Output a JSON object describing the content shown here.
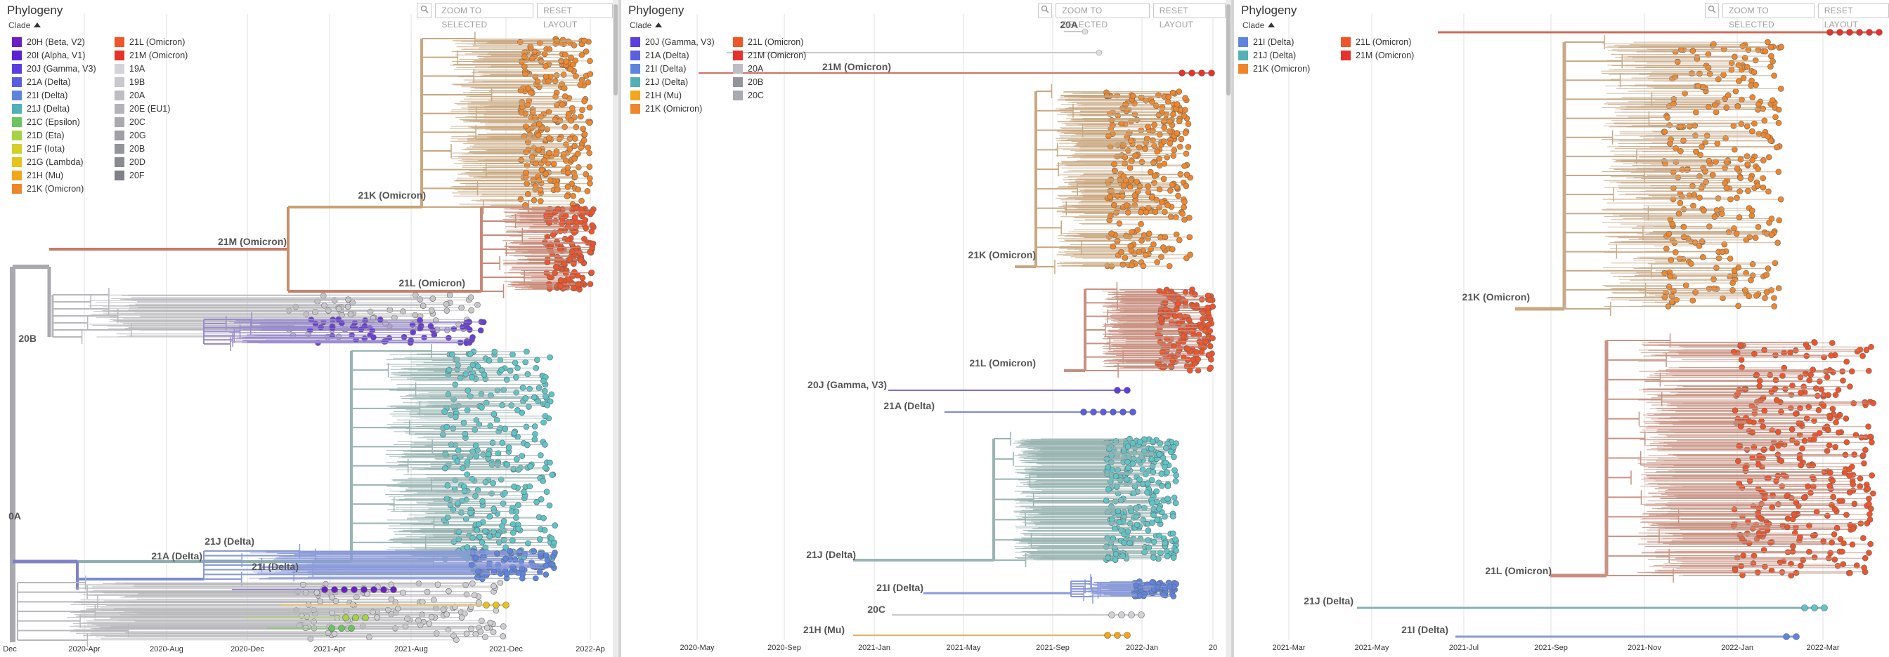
{
  "panels": [
    {
      "title": "Phylogeny",
      "clade_label": "Clade",
      "buttons": {
        "zoom": "ZOOM TO SELECTED",
        "reset": "RESET LAYOUT"
      },
      "legend": [
        [
          {
            "label": "20H (Beta, V2)",
            "color": "#6a1ec4"
          },
          {
            "label": "20I (Alpha, V1)",
            "color": "#5b22d6"
          },
          {
            "label": "20J (Gamma, V3)",
            "color": "#5a3ee0"
          },
          {
            "label": "21A (Delta)",
            "color": "#5a5ee0"
          },
          {
            "label": "21I (Delta)",
            "color": "#5e84e0"
          },
          {
            "label": "21J (Delta)",
            "color": "#52b0b8"
          },
          {
            "label": "21C (Epsilon)",
            "color": "#6cc45e"
          },
          {
            "label": "21D (Eta)",
            "color": "#a6d344"
          },
          {
            "label": "21F (Iota)",
            "color": "#d5cf29"
          },
          {
            "label": "21G (Lambda)",
            "color": "#e6c21c"
          },
          {
            "label": "21H (Mu)",
            "color": "#f2a61a"
          },
          {
            "label": "21K (Omicron)",
            "color": "#f0862a"
          }
        ],
        [
          {
            "label": "21L (Omicron)",
            "color": "#f0542a"
          },
          {
            "label": "21M (Omicron)",
            "color": "#e6322b"
          },
          {
            "label": "19A",
            "color": "#d3d3d8"
          },
          {
            "label": "19B",
            "color": "#c8c8cd"
          },
          {
            "label": "20A",
            "color": "#bdbdc3"
          },
          {
            "label": "20E (EU1)",
            "color": "#b3b3b9"
          },
          {
            "label": "20C",
            "color": "#a9a9b0"
          },
          {
            "label": "20G",
            "color": "#9e9ea6"
          },
          {
            "label": "20B",
            "color": "#94949c"
          },
          {
            "label": "20D",
            "color": "#8a8a92"
          },
          {
            "label": "20F",
            "color": "#808089"
          }
        ]
      ],
      "axis": [
        "Dec",
        "2020-Apr",
        "2020-Aug",
        "2020-Dec",
        "2021-Apr",
        "2021-Aug",
        "2021-Dec",
        "2022-Ap"
      ],
      "labels": [
        "21K (Omicron)",
        "21M (Omicron)",
        "21L (Omicron)",
        "20B",
        "0A",
        "21J (Delta)",
        "21A (Delta)",
        "21I (Delta)"
      ]
    },
    {
      "title": "Phylogeny",
      "clade_label": "Clade",
      "buttons": {
        "zoom": "ZOOM TO SELECTED",
        "reset": "RESET LAYOUT"
      },
      "legend": [
        [
          {
            "label": "20J (Gamma, V3)",
            "color": "#5a3ee0"
          },
          {
            "label": "21A (Delta)",
            "color": "#5a5ee0"
          },
          {
            "label": "21I (Delta)",
            "color": "#5e84e0"
          },
          {
            "label": "21J (Delta)",
            "color": "#52b0b8"
          },
          {
            "label": "21H (Mu)",
            "color": "#f2a61a"
          },
          {
            "label": "21K (Omicron)",
            "color": "#f0862a"
          }
        ],
        [
          {
            "label": "21L (Omicron)",
            "color": "#f0542a"
          },
          {
            "label": "21M (Omicron)",
            "color": "#e6322b"
          },
          {
            "label": "20A",
            "color": "#bdbdc3"
          },
          {
            "label": "20B",
            "color": "#94949c"
          },
          {
            "label": "20C",
            "color": "#a9a9b0"
          }
        ]
      ],
      "axis": [
        "2020-May",
        "2020-Sep",
        "2021-Jan",
        "2021-May",
        "2021-Sep",
        "2022-Jan",
        "20"
      ],
      "labels": [
        "20A",
        "21M (Omicron)",
        "21K (Omicron)",
        "21L (Omicron)",
        "20J (Gamma, V3)",
        "21A (Delta)",
        "21J (Delta)",
        "21I (Delta)",
        "20C",
        "21H (Mu)"
      ]
    },
    {
      "title": "Phylogeny",
      "clade_label": "Clade",
      "buttons": {
        "zoom": "ZOOM TO SELECTED",
        "reset": "RESET LAYOUT"
      },
      "legend": [
        [
          {
            "label": "21I (Delta)",
            "color": "#5e84e0"
          },
          {
            "label": "21J (Delta)",
            "color": "#52b0b8"
          },
          {
            "label": "21K (Omicron)",
            "color": "#f0862a"
          }
        ],
        [
          {
            "label": "21L (Omicron)",
            "color": "#f0542a"
          },
          {
            "label": "21M (Omicron)",
            "color": "#e6322b"
          }
        ]
      ],
      "axis": [
        "2021-Mar",
        "2021-May",
        "2021-Jul",
        "2021-Sep",
        "2021-Nov",
        "2022-Jan",
        "2022-Mar"
      ],
      "labels": [
        "21K (Omicron)",
        "21L (Omicron)",
        "21J (Delta)",
        "21I (Delta)"
      ]
    }
  ]
}
